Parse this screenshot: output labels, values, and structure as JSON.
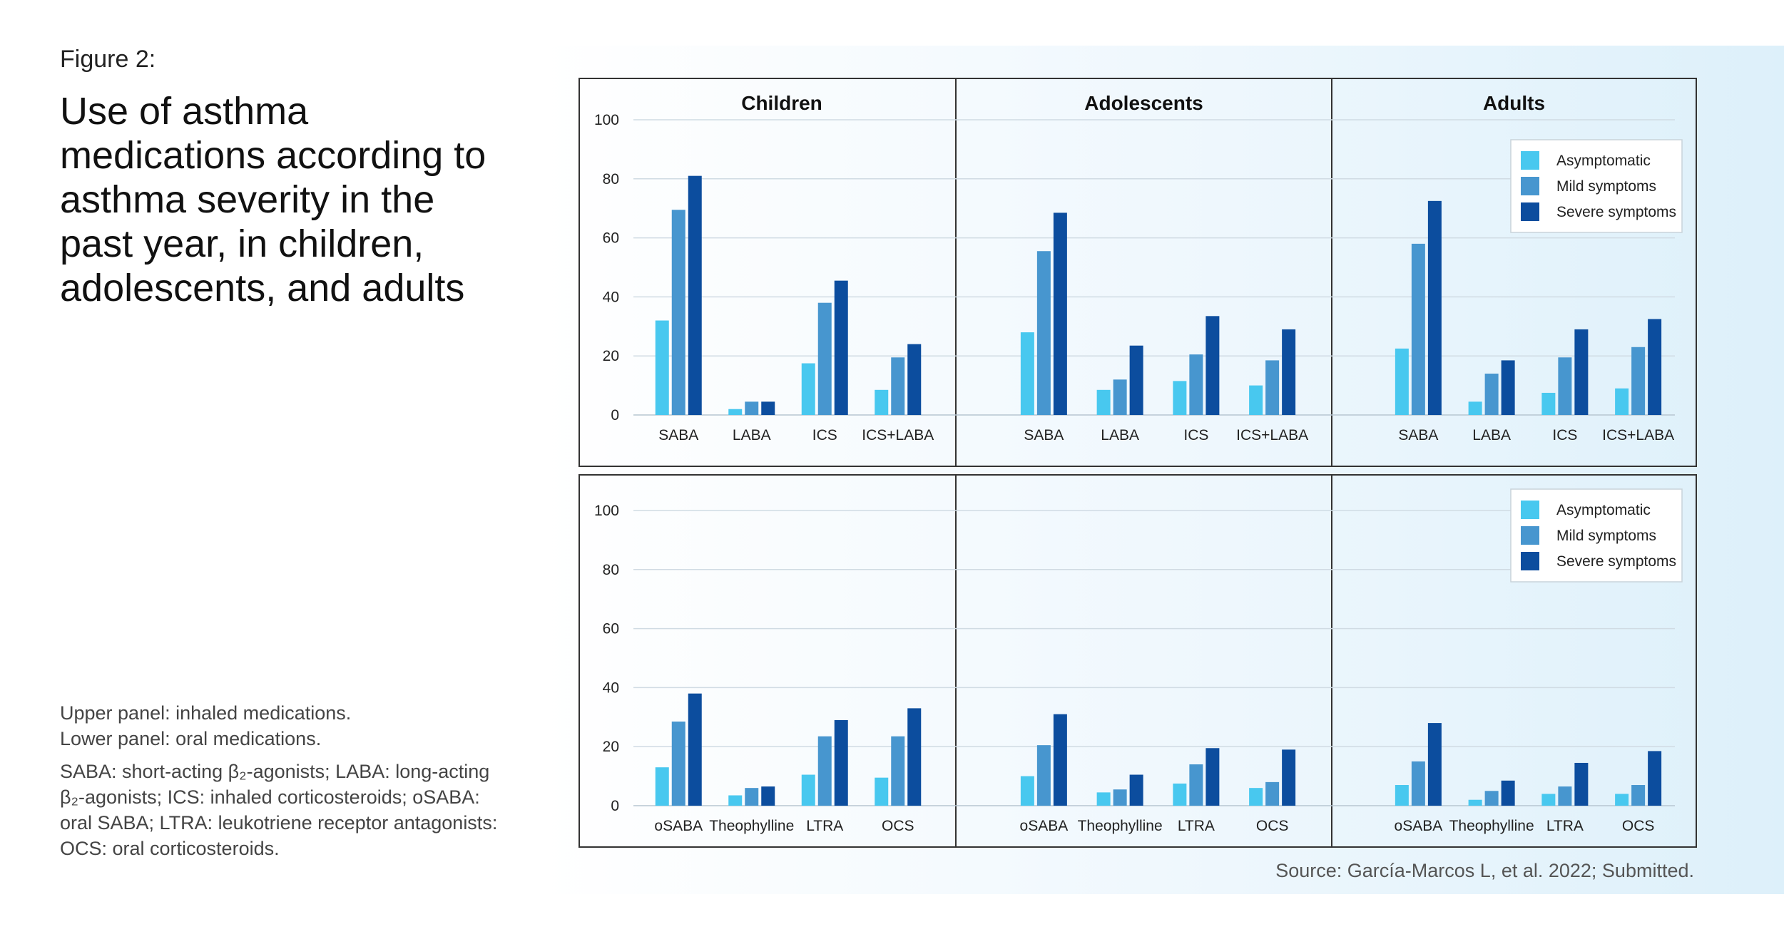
{
  "figure_label": "Figure 2:",
  "title": "Use of asthma medications according to asthma severity in the past year, in children, adolescents, and adults",
  "notes": {
    "panels": [
      "Upper panel: inhaled medications.",
      "Lower panel: oral medications."
    ],
    "abbreviations": "SABA: short-acting β₂-agonists; LABA: long-acting β₂-agonists; ICS: inhaled corticosteroids; oSABA: oral SABA; LTRA: leukotriene receptor antagonists: OCS: oral corticosteroids."
  },
  "source": "Source: García-Marcos L, et al. 2022; Submitted.",
  "colors": {
    "asymptomatic": "#48c8ef",
    "mild": "#4796cf",
    "severe": "#0c4d9e",
    "border": "#333333",
    "grid": "#d0dbe3"
  },
  "legend": [
    "Asymptomatic",
    "Mild symptoms",
    "Severe symptoms"
  ],
  "chart_data": [
    {
      "type": "bar",
      "panel": "upper",
      "ylim": [
        0,
        100
      ],
      "yticks": [
        0,
        20,
        40,
        60,
        80,
        100
      ],
      "groups": [
        {
          "title": "Children",
          "categories": [
            "SABA",
            "LABA",
            "ICS",
            "ICS+LABA"
          ],
          "series": [
            {
              "name": "Asymptomatic",
              "values": [
                32,
                2,
                17.5,
                8.5
              ]
            },
            {
              "name": "Mild symptoms",
              "values": [
                69.5,
                4.5,
                38,
                19.5
              ]
            },
            {
              "name": "Severe symptoms",
              "values": [
                81,
                4.5,
                45.5,
                24
              ]
            }
          ]
        },
        {
          "title": "Adolescents",
          "categories": [
            "SABA",
            "LABA",
            "ICS",
            "ICS+LABA"
          ],
          "series": [
            {
              "name": "Asymptomatic",
              "values": [
                28,
                8.5,
                11.5,
                10
              ]
            },
            {
              "name": "Mild symptoms",
              "values": [
                55.5,
                12,
                20.5,
                18.5
              ]
            },
            {
              "name": "Severe symptoms",
              "values": [
                68.5,
                23.5,
                33.5,
                29
              ]
            }
          ]
        },
        {
          "title": "Adults",
          "categories": [
            "SABA",
            "LABA",
            "ICS",
            "ICS+LABA"
          ],
          "series": [
            {
              "name": "Asymptomatic",
              "values": [
                22.5,
                4.5,
                7.5,
                9
              ]
            },
            {
              "name": "Mild symptoms",
              "values": [
                58,
                14,
                19.5,
                23
              ]
            },
            {
              "name": "Severe symptoms",
              "values": [
                72.5,
                18.5,
                29,
                32.5
              ]
            }
          ]
        }
      ]
    },
    {
      "type": "bar",
      "panel": "lower",
      "ylim": [
        0,
        100
      ],
      "yticks": [
        0,
        20,
        40,
        60,
        80,
        100
      ],
      "groups": [
        {
          "title": "",
          "categories": [
            "oSABA",
            "Theophylline",
            "LTRA",
            "OCS"
          ],
          "series": [
            {
              "name": "Asymptomatic",
              "values": [
                13,
                3.5,
                10.5,
                9.5
              ]
            },
            {
              "name": "Mild symptoms",
              "values": [
                28.5,
                6,
                23.5,
                23.5
              ]
            },
            {
              "name": "Severe symptoms",
              "values": [
                38,
                6.5,
                29,
                33
              ]
            }
          ]
        },
        {
          "title": "",
          "categories": [
            "oSABA",
            "Theophylline",
            "LTRA",
            "OCS"
          ],
          "series": [
            {
              "name": "Asymptomatic",
              "values": [
                10,
                4.5,
                7.5,
                6
              ]
            },
            {
              "name": "Mild symptoms",
              "values": [
                20.5,
                5.5,
                14,
                8
              ]
            },
            {
              "name": "Severe symptoms",
              "values": [
                31,
                10.5,
                19.5,
                19
              ]
            }
          ]
        },
        {
          "title": "",
          "categories": [
            "oSABA",
            "Theophylline",
            "LTRA",
            "OCS"
          ],
          "series": [
            {
              "name": "Asymptomatic",
              "values": [
                7,
                2,
                4,
                4
              ]
            },
            {
              "name": "Mild symptoms",
              "values": [
                15,
                5,
                6.5,
                7
              ]
            },
            {
              "name": "Severe symptoms",
              "values": [
                28,
                8.5,
                14.5,
                18.5
              ]
            }
          ]
        }
      ]
    }
  ]
}
